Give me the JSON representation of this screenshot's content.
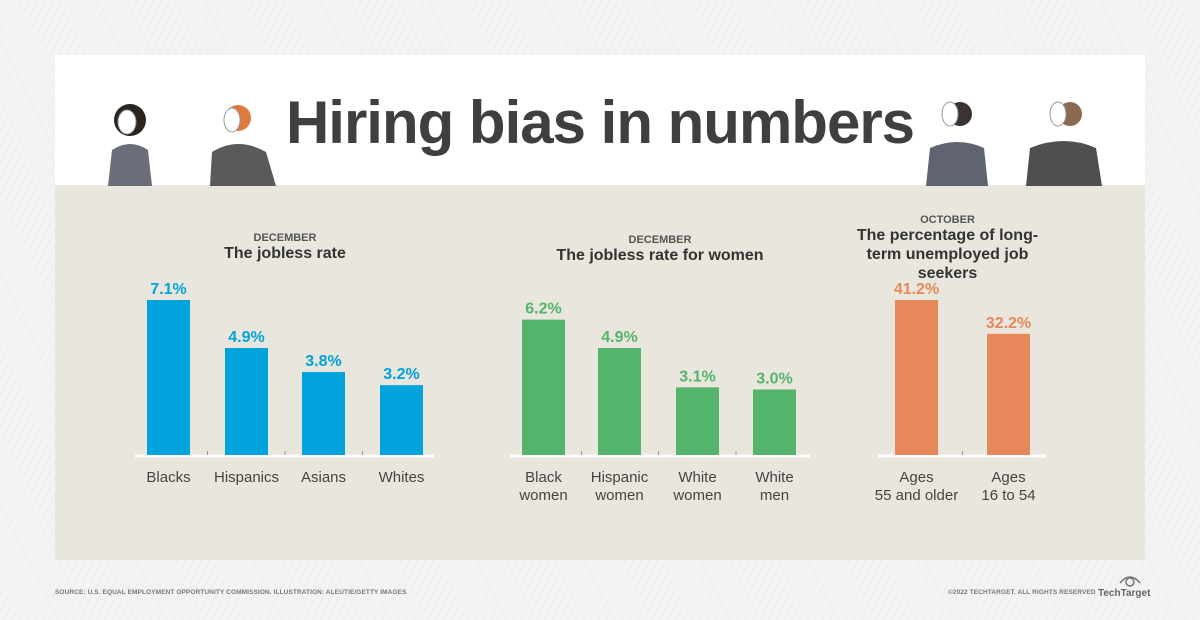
{
  "title": "Hiring bias in numbers",
  "colors": {
    "blue": "#00a3dc",
    "green": "#55b46b",
    "orange": "#e8875a"
  },
  "chart_data": [
    {
      "type": "bar",
      "month": "DECEMBER",
      "title": "The jobless rate",
      "categories": [
        "Blacks",
        "Hispanics",
        "Asians",
        "Whites"
      ],
      "values": [
        7.1,
        4.9,
        3.8,
        3.2
      ],
      "labels": [
        "7.1%",
        "4.9%",
        "3.8%",
        "3.2%"
      ],
      "color": "#00a3dc",
      "ylim": [
        0,
        7.1
      ],
      "grid": false
    },
    {
      "type": "bar",
      "month": "DECEMBER",
      "title": "The jobless rate for women",
      "categories": [
        "Black women",
        "Hispanic women",
        "White women",
        "White men"
      ],
      "values": [
        6.2,
        4.9,
        3.1,
        3.0
      ],
      "labels": [
        "6.2%",
        "4.9%",
        "3.1%",
        "3.0%"
      ],
      "color": "#55b46b",
      "ylim": [
        0,
        7.1
      ],
      "grid": false
    },
    {
      "type": "bar",
      "month": "OCTOBER",
      "title": "The percentage of long-term unemployed job seekers",
      "categories": [
        "Ages 55 and older",
        "Ages 16 to 54"
      ],
      "values": [
        41.2,
        32.2
      ],
      "labels": [
        "41.2%",
        "32.2%"
      ],
      "color": "#e8875a",
      "ylim": [
        0,
        41.2
      ],
      "grid": false
    }
  ],
  "footer": {
    "source": "SOURCE: U.S. EQUAL EMPLOYMENT OPPORTUNITY COMMISSION. ILLUSTRATION: ALEUTIE/GETTY IMAGES",
    "copyright": "©2022 TECHTARGET. ALL RIGHTS RESERVED",
    "logo": "TechTarget"
  }
}
